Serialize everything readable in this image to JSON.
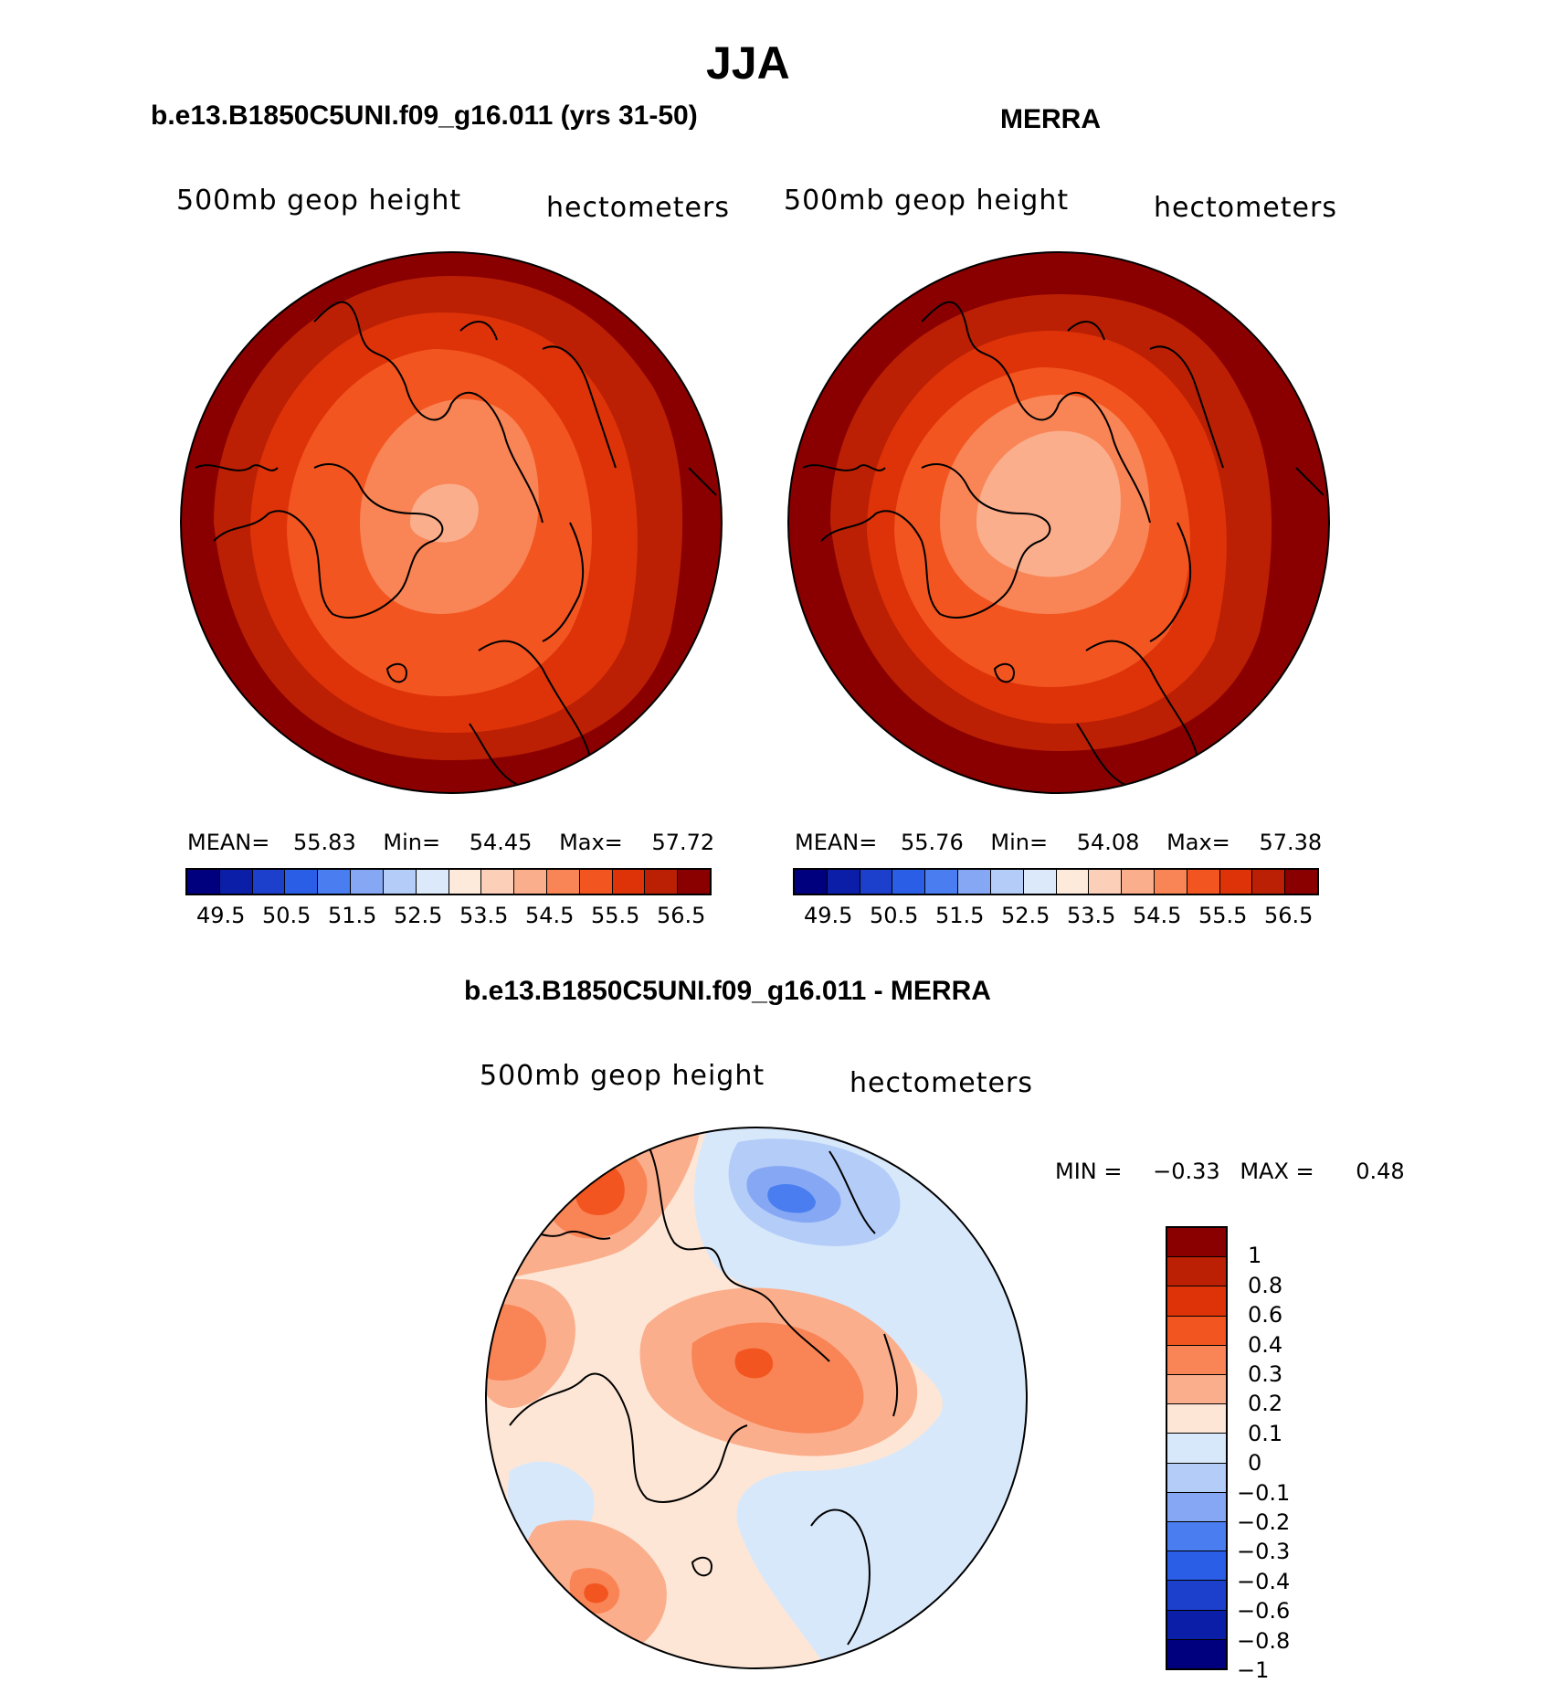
{
  "page": {
    "title": "JJA",
    "left_panel_title": "b.e13.B1850C5UNI.f09_g16.011 (yrs 31-50)",
    "right_panel_title": "MERRA",
    "diff_panel_title": "b.e13.B1850C5UNI.f09_g16.011 - MERRA"
  },
  "panels": {
    "model": {
      "field_label": "500mb geop height",
      "units_label": "hectometers",
      "mean_label": "MEAN=",
      "mean_value": "55.83",
      "min_label": "Min=",
      "min_value": "54.45",
      "max_label": "Max=",
      "max_value": "57.72"
    },
    "merra": {
      "field_label": "500mb geop height",
      "units_label": "hectometers",
      "mean_label": "MEAN=",
      "mean_value": "55.76",
      "min_label": "Min=",
      "min_value": "54.08",
      "max_label": "Max=",
      "max_value": "57.38"
    },
    "diff": {
      "field_label": "500mb geop height",
      "units_label": "hectometers",
      "min_label": "MIN =",
      "min_value": "−0.33",
      "max_label": "MAX =",
      "max_value": "0.48"
    }
  },
  "colorbar_abs": {
    "colors": [
      "#00007f",
      "#0a1ea8",
      "#1c3fcc",
      "#2a5ee6",
      "#4a7ef0",
      "#86a8f4",
      "#b4ccf8",
      "#dce9fb",
      "#feeadb",
      "#fcd0b8",
      "#fbae8c",
      "#f98455",
      "#f25520",
      "#de3308",
      "#bb2004",
      "#8a0000"
    ],
    "tick_labels": [
      "49.5",
      "50.5",
      "51.5",
      "52.5",
      "53.5",
      "54.5",
      "55.5",
      "56.5"
    ]
  },
  "colorbar_diff": {
    "colors": [
      "#8a0000",
      "#bb2004",
      "#de3308",
      "#f25520",
      "#f98455",
      "#fbae8c",
      "#fde6d6",
      "#d8e8fb",
      "#b4ccf8",
      "#86a8f4",
      "#4a7ef0",
      "#2a5ee6",
      "#1c3fcc",
      "#0a1ea8",
      "#00007f"
    ],
    "tick_labels": [
      "1",
      "0.8",
      "0.6",
      "0.4",
      "0.3",
      "0.2",
      "0.1",
      "0",
      "−0.1",
      "−0.2",
      "−0.3",
      "−0.4",
      "−0.6",
      "−0.8",
      "−1"
    ]
  }
}
